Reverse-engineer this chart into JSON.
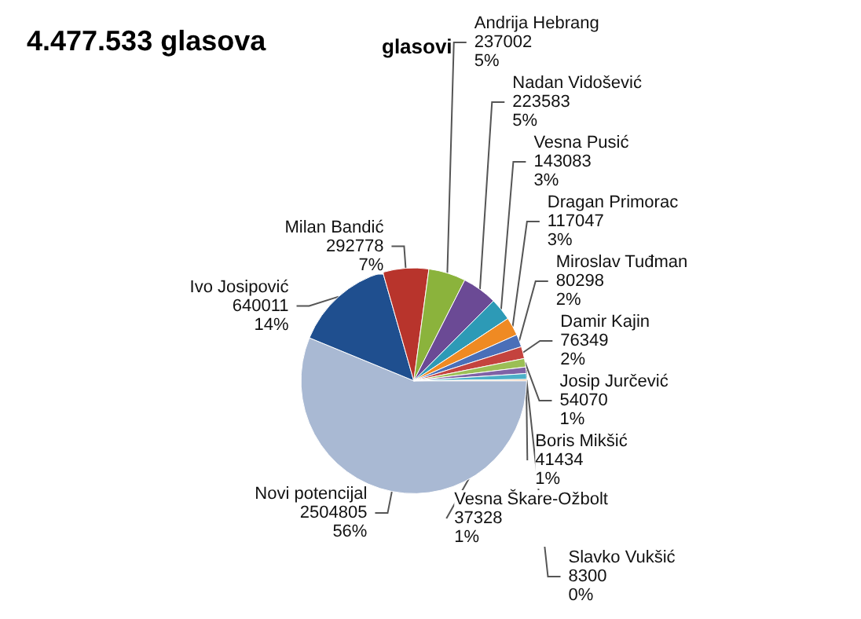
{
  "chart_data": {
    "type": "pie",
    "title": "4.477.533 glasova",
    "subtitle": "glasovi",
    "categories": [
      "Novi potencijal",
      "Ivo Josipović",
      "Milan Bandić",
      "Andrija Hebrang",
      "Nadan Vidošević",
      "Vesna Pusić",
      "Dragan Primorac",
      "Miroslav Tuđman",
      "Damir Kajin",
      "Josip Jurčević",
      "Boris Mikšić",
      "Vesna Škare-Ožbolt",
      "Slavko Vukšić"
    ],
    "values": [
      2504805,
      640011,
      292778,
      237002,
      223583,
      143083,
      117047,
      80298,
      76349,
      54070,
      41434,
      37328,
      8300
    ],
    "value_labels": [
      "2504805\n56%",
      "640011\n14%",
      "292778\n7%",
      "237002\n5%",
      "223583\n5%",
      "143083\n3%",
      "117047\n3%",
      "80298\n2%",
      "76349\n2%",
      "54070\n1%",
      "41434\n1%",
      "37328\n1%",
      "8300\n0%"
    ],
    "colors": [
      "#a9b9d3",
      "#1f4f8f",
      "#b8342c",
      "#8bb33c",
      "#6b4a95",
      "#2d9ab6",
      "#ef8a23",
      "#4a6fb8",
      "#c4433e",
      "#9bbf55",
      "#7f62a6",
      "#4bb0c8",
      "#f59a48"
    ]
  }
}
